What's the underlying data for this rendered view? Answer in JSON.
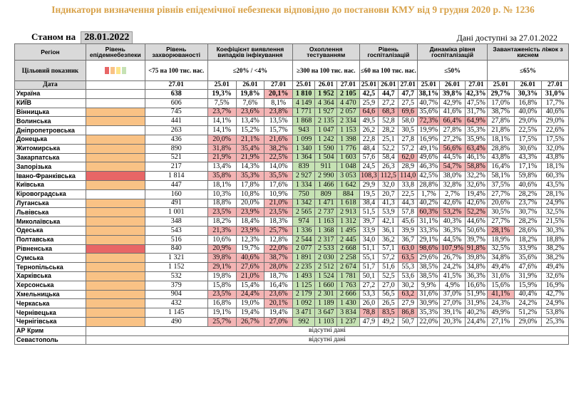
{
  "header": {
    "title": "Індикатори визначення рівнів епідемічної небезпеки відповідно до постанови КМУ від 9 грудня 2020 р. № 1236",
    "as_of_label": "Станом на",
    "as_of_date": "28.01.2022",
    "available_label": "Дані доступні за",
    "available_date": "27.01.2022"
  },
  "columns": {
    "region": "Регіон",
    "level": "Рівень епідемнебезпеки",
    "incidence": "Рівень захворюваності",
    "detection": "Коефіцієнт виявлення випадків інфікування",
    "testing": "Охоплення тестуванням",
    "hospital": "Рівень госпіталізацій",
    "dynamics": "Динаміка рівня госпіталізацій",
    "oxygen": "Завантаженість ліжок з киснем"
  },
  "targets": {
    "label": "Цільовий показник",
    "legend_colors": [
      "#e86666",
      "#f9c285",
      "#fce58a",
      "#c6e2b4"
    ],
    "incidence": "<75 на 100 тис. нас.",
    "detection": "≤20% / <4%",
    "testing": "≥300 на 100 тис. нас.",
    "hospital": "≤60 на 100 тис. нас.",
    "dynamics": "≤50%",
    "oxygen": "≤65%"
  },
  "dates": {
    "label": "Дата",
    "incidence": "27.01",
    "d1": "25.01",
    "d2": "26.01",
    "d3": "27.01"
  },
  "rows": [
    {
      "name": "Україна",
      "level": "none",
      "inc": "638",
      "det": [
        "19,3%",
        "19,8%",
        "20,1%"
      ],
      "tst": [
        "1 810",
        "1 952",
        "2 105"
      ],
      "hos": [
        "42,5",
        "44,7",
        "47,7"
      ],
      "dyn": [
        "38,1%",
        "39,8%",
        "42,3%"
      ],
      "oxy": [
        "29,7%",
        "30,3%",
        "31,0%"
      ],
      "c": "000RGGG000000000"
    },
    {
      "name": "КИЇВ",
      "level": "none",
      "inc": "606",
      "det": [
        "7,5%",
        "7,6%",
        "8,1%"
      ],
      "tst": [
        "4 149",
        "4 364",
        "4 470"
      ],
      "hos": [
        "25,9",
        "27,2",
        "27,5"
      ],
      "dyn": [
        "40,7%",
        "42,9%",
        "47,5%"
      ],
      "oxy": [
        "17,0%",
        "16,8%",
        "17,7%"
      ],
      "c": "0000GGG000000000"
    },
    {
      "name": "Вінницька",
      "level": "orange",
      "inc": "745",
      "det": [
        "23,7%",
        "23,6%",
        "23,8%"
      ],
      "tst": [
        "1 771",
        "1 927",
        "2 057"
      ],
      "hos": [
        "64,6",
        "68,3",
        "69,6"
      ],
      "dyn": [
        "35,6%",
        "41,6%",
        "31,7%"
      ],
      "oxy": [
        "38,7%",
        "40,0%",
        "40,6%"
      ],
      "c": "0RRRGGGRRR000000"
    },
    {
      "name": "Волинська",
      "level": "orange",
      "inc": "441",
      "det": [
        "14,1%",
        "13,4%",
        "13,5%"
      ],
      "tst": [
        "1 868",
        "2 135",
        "2 334"
      ],
      "hos": [
        "49,5",
        "52,8",
        "58,0"
      ],
      "dyn": [
        "72,3%",
        "66,4%",
        "64,9%"
      ],
      "oxy": [
        "27,8%",
        "29,0%",
        "29,0%"
      ],
      "c": "0000GGG000RRR000"
    },
    {
      "name": "Дніпропетровська",
      "level": "none",
      "inc": "263",
      "det": [
        "14,1%",
        "15,2%",
        "15,7%"
      ],
      "tst": [
        "943",
        "1 047",
        "1 153"
      ],
      "hos": [
        "26,2",
        "28,2",
        "30,5"
      ],
      "dyn": [
        "19,9%",
        "27,8%",
        "35,3%"
      ],
      "oxy": [
        "21,8%",
        "22,5%",
        "22,6%"
      ],
      "c": "0000GGG000000000"
    },
    {
      "name": "Донецька",
      "level": "orange",
      "inc": "436",
      "det": [
        "20,0%",
        "21,1%",
        "21,6%"
      ],
      "tst": [
        "1 099",
        "1 242",
        "1 398"
      ],
      "hos": [
        "22,8",
        "25,1",
        "27,8"
      ],
      "dyn": [
        "16,9%",
        "27,2%",
        "35,9%"
      ],
      "oxy": [
        "18,1%",
        "17,5%",
        "17,5%"
      ],
      "c": "0RRRGGG000000000"
    },
    {
      "name": "Житомирська",
      "level": "orange",
      "inc": "890",
      "det": [
        "31,8%",
        "35,4%",
        "38,2%"
      ],
      "tst": [
        "1 340",
        "1 590",
        "1 776"
      ],
      "hos": [
        "48,4",
        "52,2",
        "57,2"
      ],
      "dyn": [
        "49,1%",
        "56,6%",
        "63,4%"
      ],
      "oxy": [
        "28,8%",
        "30,6%",
        "32,0%"
      ],
      "c": "0RRRGGG0000RR000"
    },
    {
      "name": "Закарпатська",
      "level": "orange",
      "inc": "521",
      "det": [
        "21,9%",
        "21,9%",
        "22,5%"
      ],
      "tst": [
        "1 364",
        "1 504",
        "1 603"
      ],
      "hos": [
        "57,6",
        "58,4",
        "62,0"
      ],
      "dyn": [
        "49,6%",
        "44,5%",
        "46,1%"
      ],
      "oxy": [
        "43,8%",
        "43,3%",
        "43,8%"
      ],
      "c": "0RRRGGG00R000000"
    },
    {
      "name": "Запорізька",
      "level": "orange",
      "inc": "217",
      "det": [
        "13,4%",
        "14,3%",
        "14,0%"
      ],
      "tst": [
        "839",
        "911",
        "1 048"
      ],
      "hos": [
        "24,5",
        "26,3",
        "28,9"
      ],
      "dyn": [
        "46,3%",
        "54,7%",
        "58,8%"
      ],
      "oxy": [
        "16,4%",
        "17,1%",
        "18,1%"
      ],
      "c": "0000GGG0000RR000"
    },
    {
      "name": "Івано-Франківська",
      "level": "red",
      "inc": "1 814",
      "det": [
        "35,8%",
        "35,3%",
        "35,5%"
      ],
      "tst": [
        "2 927",
        "2 990",
        "3 053"
      ],
      "hos": [
        "108,3",
        "112,5",
        "114,0"
      ],
      "dyn": [
        "42,5%",
        "38,0%",
        "32,2%"
      ],
      "oxy": [
        "58,1%",
        "59,8%",
        "60,3%"
      ],
      "c": "0RRRGGGRRR000000"
    },
    {
      "name": "Київська",
      "level": "orange",
      "inc": "447",
      "det": [
        "18,1%",
        "17,8%",
        "17,6%"
      ],
      "tst": [
        "1 334",
        "1 466",
        "1 642"
      ],
      "hos": [
        "29,9",
        "32,0",
        "33,8"
      ],
      "dyn": [
        "28,8%",
        "32,8%",
        "32,6%"
      ],
      "oxy": [
        "37,5%",
        "40,6%",
        "43,5%"
      ],
      "c": "0000GGG000000000"
    },
    {
      "name": "Кіровоградська",
      "level": "none",
      "inc": "160",
      "det": [
        "10,3%",
        "10,8%",
        "10,9%"
      ],
      "tst": [
        "750",
        "809",
        "884"
      ],
      "hos": [
        "19,5",
        "20,7",
        "22,5"
      ],
      "dyn": [
        "1,7%",
        "2,7%",
        "19,4%"
      ],
      "oxy": [
        "27,7%",
        "28,2%",
        "28,1%"
      ],
      "c": "0000GGG000000000"
    },
    {
      "name": "Луганська",
      "level": "orange",
      "inc": "491",
      "det": [
        "18,8%",
        "20,0%",
        "21,0%"
      ],
      "tst": [
        "1 342",
        "1 471",
        "1 618"
      ],
      "hos": [
        "38,4",
        "41,3",
        "44,3"
      ],
      "dyn": [
        "40,2%",
        "42,6%",
        "42,6%"
      ],
      "oxy": [
        "20,6%",
        "23,7%",
        "24,9%"
      ],
      "c": "000RGGG000000000"
    },
    {
      "name": "Львівська",
      "level": "orange",
      "inc": "1 001",
      "det": [
        "23,5%",
        "23,9%",
        "23,5%"
      ],
      "tst": [
        "2 565",
        "2 737",
        "2 913"
      ],
      "hos": [
        "51,5",
        "53,9",
        "57,8"
      ],
      "dyn": [
        "60,3%",
        "53,2%",
        "52,2%"
      ],
      "oxy": [
        "30,5%",
        "30,7%",
        "32,5%"
      ],
      "c": "0RRRGGG000RRR000"
    },
    {
      "name": "Миколаївська",
      "level": "orange",
      "inc": "348",
      "det": [
        "18,2%",
        "18,4%",
        "18,3%"
      ],
      "tst": [
        "974",
        "1 163",
        "1 312"
      ],
      "hos": [
        "39,7",
        "42,1",
        "45,6"
      ],
      "dyn": [
        "31,1%",
        "40,3%",
        "44,6%"
      ],
      "oxy": [
        "27,7%",
        "28,2%",
        "21,5%"
      ],
      "c": "0000GGG000000000"
    },
    {
      "name": "Одеська",
      "level": "orange",
      "inc": "543",
      "det": [
        "21,3%",
        "23,9%",
        "25,7%"
      ],
      "tst": [
        "1 336",
        "1 368",
        "1 495"
      ],
      "hos": [
        "33,9",
        "36,1",
        "39,9"
      ],
      "dyn": [
        "33,3%",
        "36,3%",
        "50,6%"
      ],
      "oxy": [
        "28,1%",
        "28,6%",
        "30,3%"
      ],
      "c": "0RRRGGG000000R00"
    },
    {
      "name": "Полтавська",
      "level": "orange",
      "inc": "516",
      "det": [
        "10,6%",
        "12,3%",
        "12,8%"
      ],
      "tst": [
        "2 544",
        "2 317",
        "2 445"
      ],
      "hos": [
        "34,0",
        "36,2",
        "36,7"
      ],
      "dyn": [
        "29,1%",
        "44,5%",
        "39,7%"
      ],
      "oxy": [
        "18,9%",
        "18,2%",
        "18,8%"
      ],
      "c": "0000GGG000000000"
    },
    {
      "name": "Рівненська",
      "level": "red",
      "inc": "840",
      "det": [
        "20,9%",
        "19,7%",
        "22,0%"
      ],
      "tst": [
        "2 077",
        "2 533",
        "2 668"
      ],
      "hos": [
        "51,1",
        "57,1",
        "63,0"
      ],
      "dyn": [
        "98,6%",
        "107,9%",
        "91,8%"
      ],
      "oxy": [
        "32,5%",
        "33,9%",
        "38,2%"
      ],
      "c": "0R0RGGG00RRRR000"
    },
    {
      "name": "Сумська",
      "level": "orange",
      "inc": "1 321",
      "det": [
        "39,8%",
        "40,6%",
        "38,7%"
      ],
      "tst": [
        "1 891",
        "2 030",
        "2 258"
      ],
      "hos": [
        "55,1",
        "57,2",
        "63,5"
      ],
      "dyn": [
        "29,6%",
        "26,7%",
        "39,8%"
      ],
      "oxy": [
        "34,8%",
        "35,6%",
        "38,2%"
      ],
      "c": "0RRRGGG00R000000"
    },
    {
      "name": "Тернопільська",
      "level": "orange",
      "inc": "1 152",
      "det": [
        "29,1%",
        "27,6%",
        "28,0%"
      ],
      "tst": [
        "2 235",
        "2 512",
        "2 674"
      ],
      "hos": [
        "51,7",
        "51,6",
        "55,3"
      ],
      "dyn": [
        "38,5%",
        "24,2%",
        "34,8%"
      ],
      "oxy": [
        "49,4%",
        "47,6%",
        "49,4%"
      ],
      "c": "0RRRGGG000000000"
    },
    {
      "name": "Харківська",
      "level": "orange",
      "inc": "532",
      "det": [
        "19,8%",
        "21,0%",
        "18,7%"
      ],
      "tst": [
        "1 493",
        "1 524",
        "1 781"
      ],
      "hos": [
        "50,1",
        "52,5",
        "53,6"
      ],
      "dyn": [
        "38,5%",
        "41,5%",
        "36,3%"
      ],
      "oxy": [
        "31,6%",
        "31,9%",
        "32,6%"
      ],
      "c": "00R0GGG000000000"
    },
    {
      "name": "Херсонська",
      "level": "orange",
      "inc": "379",
      "det": [
        "15,8%",
        "15,4%",
        "16,4%"
      ],
      "tst": [
        "1 125",
        "1 660",
        "1 763"
      ],
      "hos": [
        "27,2",
        "27,0",
        "30,2"
      ],
      "dyn": [
        "9,9%",
        "4,9%",
        "16,6%"
      ],
      "oxy": [
        "15,6%",
        "15,9%",
        "16,9%"
      ],
      "c": "0000GGG000000000"
    },
    {
      "name": "Хмельницька",
      "level": "orange",
      "inc": "904",
      "det": [
        "23,5%",
        "24,4%",
        "23,6%"
      ],
      "tst": [
        "2 179",
        "2 301",
        "2 666"
      ],
      "hos": [
        "53,3",
        "56,5",
        "63,2"
      ],
      "dyn": [
        "31,6%",
        "37,0%",
        "51,9%"
      ],
      "oxy": [
        "41,1%",
        "40,4%",
        "42,7%"
      ],
      "c": "0RRRGGG00R000R00"
    },
    {
      "name": "Черкаська",
      "level": "orange",
      "inc": "432",
      "det": [
        "16,8%",
        "19,0%",
        "20,1%"
      ],
      "tst": [
        "1 092",
        "1 189",
        "1 430"
      ],
      "hos": [
        "26,0",
        "26,5",
        "27,9"
      ],
      "dyn": [
        "30,9%",
        "27,0%",
        "31,9%"
      ],
      "oxy": [
        "24,3%",
        "24,2%",
        "24,9%"
      ],
      "c": "000RGGG000000000"
    },
    {
      "name": "Чернівецька",
      "level": "orange",
      "inc": "1 145",
      "det": [
        "19,1%",
        "19,4%",
        "19,4%"
      ],
      "tst": [
        "3 471",
        "3 647",
        "3 834"
      ],
      "hos": [
        "78,8",
        "83,5",
        "86,8"
      ],
      "dyn": [
        "35,3%",
        "39,1%",
        "40,2%"
      ],
      "oxy": [
        "49,9%",
        "51,2%",
        "53,8%"
      ],
      "c": "0000GGGRRR000000"
    },
    {
      "name": "Чернігівська",
      "level": "orange",
      "inc": "490",
      "det": [
        "25,7%",
        "26,7%",
        "27,0%"
      ],
      "tst": [
        "992",
        "1 103",
        "1 237"
      ],
      "hos": [
        "47,9",
        "49,2",
        "50,7"
      ],
      "dyn": [
        "22,0%",
        "20,3%",
        "24,4%"
      ],
      "oxy": [
        "27,1%",
        "29,0%",
        "25,3%"
      ],
      "c": "0RRRGGG000000000"
    }
  ],
  "na_rows": [
    {
      "name": "АР Крим",
      "text": "відсутні дані"
    },
    {
      "name": "Севастополь",
      "text": "відсутні дані"
    }
  ]
}
